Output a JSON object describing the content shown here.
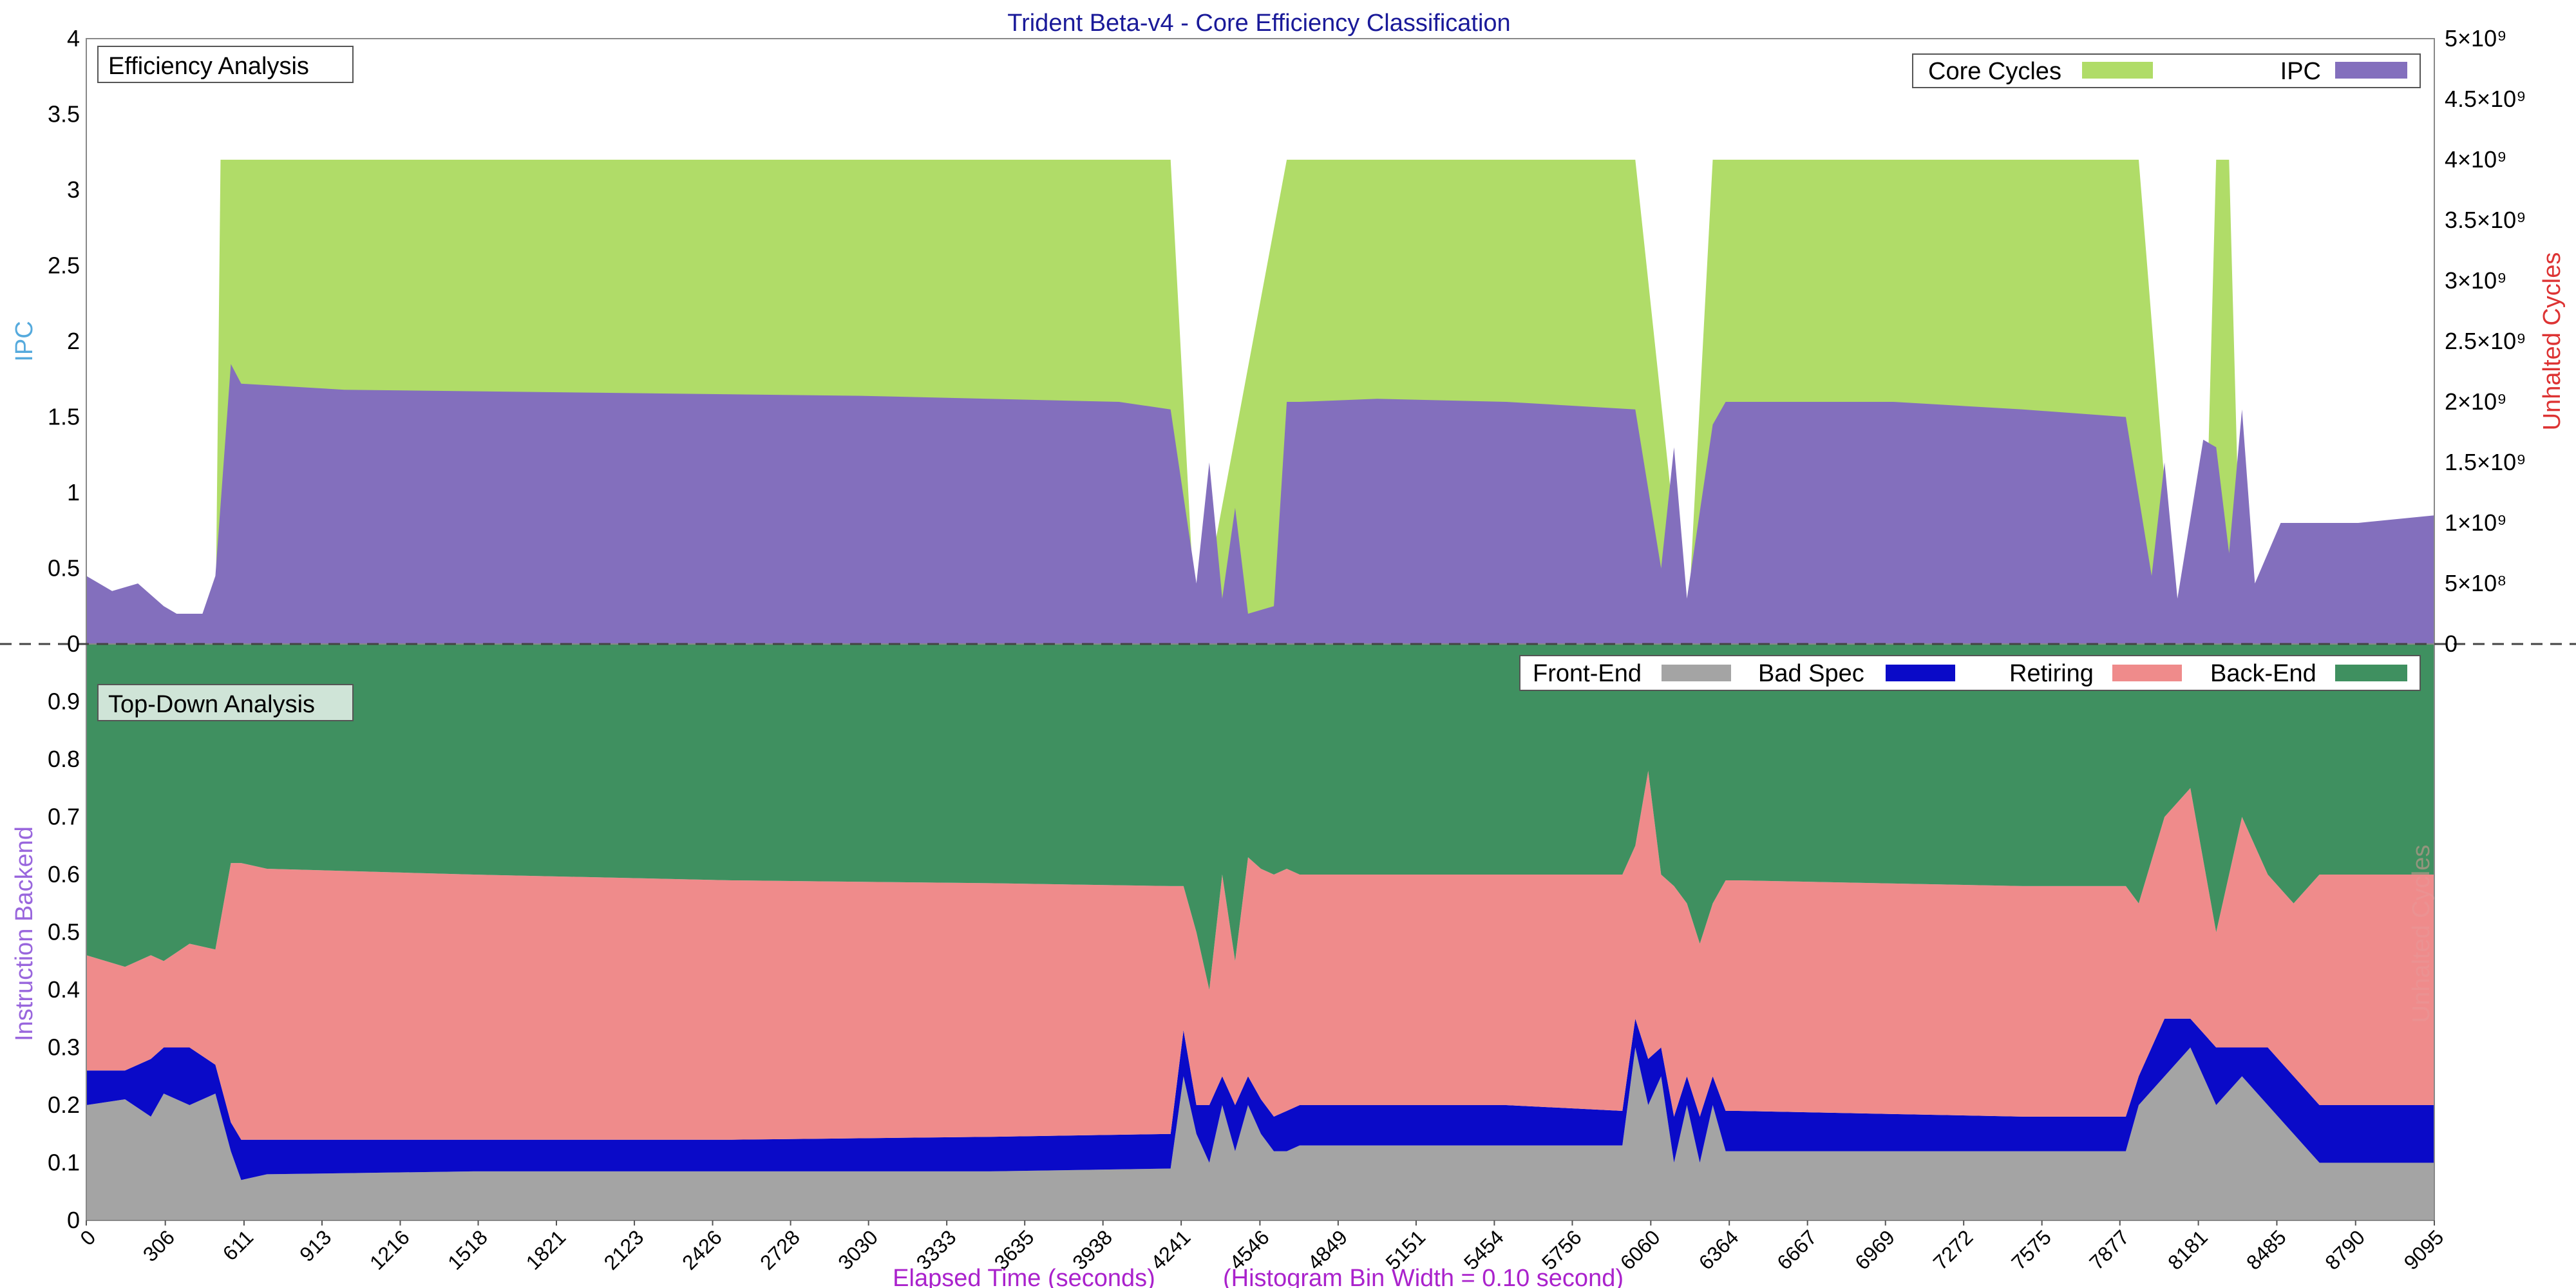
{
  "title": "Trident Beta-v4 - Core Efficiency Classification",
  "colors": {
    "core_cycles": "#b0dc68",
    "ipc": "#836fbd",
    "front_end": "#a4a4a4",
    "bad_spec": "#0a0ac8",
    "retiring": "#ef8b8b",
    "back_end": "#3f9060",
    "title": "#1a1a99",
    "xlabel": "#aa22cc",
    "ipc_axis": "#55aadd",
    "cycles_axis": "#dd3333",
    "td_axis": "#9966dd"
  },
  "chart_data": [
    {
      "type": "area",
      "panel_label": "Efficiency Analysis",
      "ylabel": "IPC",
      "y2label": "Unhalted Cycles",
      "ylim": [
        0,
        4
      ],
      "y_ticks": [
        "0",
        "0.5",
        "1",
        "1.5",
        "2",
        "2.5",
        "3",
        "3.5",
        "4"
      ],
      "y2lim": [
        0,
        5000000000
      ],
      "y2_ticks": [
        "0",
        "5×10⁸",
        "1×10⁹",
        "1.5×10⁹",
        "2×10⁹",
        "2.5×10⁹",
        "3×10⁹",
        "3.5×10⁹",
        "4×10⁹",
        "4.5×10⁹",
        "5×10⁹"
      ],
      "legend": "top-right",
      "grid": false,
      "series": [
        {
          "name": "Core Cycles",
          "axis": "right",
          "x": [
            0,
            500,
            520,
            560,
            4200,
            4300,
            4650,
            6000,
            6200,
            6300,
            7950,
            8100,
            8200,
            8250,
            8300,
            8350,
            9095
          ],
          "values": [
            0,
            0,
            4000000000,
            4000000000,
            4000000000,
            0,
            4000000000,
            4000000000,
            0,
            4000000000,
            4000000000,
            0,
            0,
            4000000000,
            4000000000,
            0,
            0
          ]
        },
        {
          "name": "IPC",
          "axis": "left",
          "x": [
            0,
            100,
            200,
            300,
            350,
            450,
            500,
            560,
            600,
            1000,
            2000,
            3000,
            4000,
            4200,
            4300,
            4350,
            4400,
            4450,
            4500,
            4600,
            4650,
            4700,
            5000,
            5500,
            6000,
            6100,
            6150,
            6200,
            6300,
            6350,
            6400,
            7000,
            7500,
            7900,
            8000,
            8050,
            8100,
            8200,
            8250,
            8300,
            8350,
            8400,
            8500,
            8800,
            9095
          ],
          "values": [
            0.45,
            0.35,
            0.4,
            0.25,
            0.2,
            0.2,
            0.45,
            1.85,
            1.72,
            1.68,
            1.66,
            1.64,
            1.6,
            1.55,
            0.4,
            1.2,
            0.3,
            0.9,
            0.2,
            0.25,
            1.6,
            1.6,
            1.62,
            1.6,
            1.55,
            0.5,
            1.3,
            0.3,
            1.45,
            1.6,
            1.6,
            1.6,
            1.55,
            1.5,
            0.45,
            1.2,
            0.3,
            1.35,
            1.3,
            0.6,
            1.55,
            0.4,
            0.8,
            0.8,
            0.85
          ]
        }
      ]
    },
    {
      "type": "area",
      "stacked": true,
      "panel_label": "Top-Down Analysis",
      "ylabel": "Instruction Backend",
      "y2label": "Unhalted Cycles",
      "ylim": [
        0,
        1
      ],
      "y_ticks": [
        "0",
        "0.1",
        "0.2",
        "0.3",
        "0.4",
        "0.5",
        "0.6",
        "0.7",
        "0.8",
        "0.9"
      ],
      "xlabel": "Elapsed Time (seconds)",
      "xnote": "(Histogram Bin Width = 0.10 second)",
      "xlim": [
        0,
        9095
      ],
      "x_ticks": [
        "0",
        "306",
        "611",
        "913",
        "1216",
        "1518",
        "1821",
        "2123",
        "2426",
        "2728",
        "3030",
        "3333",
        "3635",
        "3938",
        "4241",
        "4546",
        "4849",
        "5151",
        "5454",
        "5756",
        "6060",
        "6364",
        "6667",
        "6969",
        "7272",
        "7575",
        "7877",
        "8181",
        "8485",
        "8790",
        "9095"
      ],
      "legend": "top-right",
      "grid": false,
      "x": [
        0,
        150,
        250,
        300,
        400,
        500,
        560,
        600,
        700,
        1500,
        2500,
        3500,
        4200,
        4250,
        4300,
        4350,
        4400,
        4450,
        4500,
        4550,
        4600,
        4650,
        4700,
        5500,
        5950,
        6000,
        6050,
        6100,
        6150,
        6200,
        6250,
        6300,
        6350,
        6400,
        7500,
        7900,
        7950,
        8050,
        8150,
        8250,
        8350,
        8450,
        8550,
        8650,
        9095
      ],
      "series": [
        {
          "name": "Front-End",
          "values": [
            0.2,
            0.21,
            0.18,
            0.22,
            0.2,
            0.22,
            0.12,
            0.07,
            0.08,
            0.085,
            0.085,
            0.085,
            0.09,
            0.25,
            0.15,
            0.1,
            0.2,
            0.12,
            0.2,
            0.15,
            0.12,
            0.12,
            0.13,
            0.13,
            0.13,
            0.3,
            0.2,
            0.25,
            0.1,
            0.2,
            0.1,
            0.2,
            0.12,
            0.12,
            0.12,
            0.12,
            0.2,
            0.25,
            0.3,
            0.2,
            0.25,
            0.2,
            0.15,
            0.1,
            0.1
          ]
        },
        {
          "name": "Bad Spec",
          "values": [
            0.06,
            0.05,
            0.1,
            0.08,
            0.1,
            0.05,
            0.05,
            0.07,
            0.06,
            0.055,
            0.055,
            0.06,
            0.06,
            0.08,
            0.05,
            0.1,
            0.05,
            0.08,
            0.05,
            0.06,
            0.06,
            0.07,
            0.07,
            0.07,
            0.06,
            0.05,
            0.08,
            0.05,
            0.08,
            0.05,
            0.08,
            0.05,
            0.07,
            0.07,
            0.06,
            0.06,
            0.05,
            0.1,
            0.05,
            0.1,
            0.05,
            0.1,
            0.1,
            0.1,
            0.1
          ]
        },
        {
          "name": "Retiring",
          "values": [
            0.2,
            0.18,
            0.18,
            0.15,
            0.18,
            0.2,
            0.45,
            0.48,
            0.47,
            0.46,
            0.45,
            0.44,
            0.43,
            0.25,
            0.3,
            0.2,
            0.35,
            0.25,
            0.38,
            0.4,
            0.42,
            0.42,
            0.4,
            0.4,
            0.41,
            0.3,
            0.5,
            0.3,
            0.4,
            0.3,
            0.3,
            0.3,
            0.4,
            0.4,
            0.4,
            0.4,
            0.3,
            0.35,
            0.4,
            0.2,
            0.4,
            0.3,
            0.3,
            0.4,
            0.4
          ]
        },
        {
          "name": "Back-End",
          "values": [
            0.54,
            0.56,
            0.54,
            0.55,
            0.52,
            0.53,
            0.38,
            0.38,
            0.39,
            0.4,
            0.41,
            0.415,
            0.42,
            0.42,
            0.5,
            0.6,
            0.4,
            0.55,
            0.37,
            0.39,
            0.4,
            0.39,
            0.4,
            0.4,
            0.4,
            0.35,
            0.22,
            0.4,
            0.42,
            0.45,
            0.52,
            0.45,
            0.41,
            0.41,
            0.42,
            0.42,
            0.45,
            0.3,
            0.25,
            0.5,
            0.3,
            0.4,
            0.45,
            0.4,
            0.4
          ]
        }
      ]
    }
  ]
}
